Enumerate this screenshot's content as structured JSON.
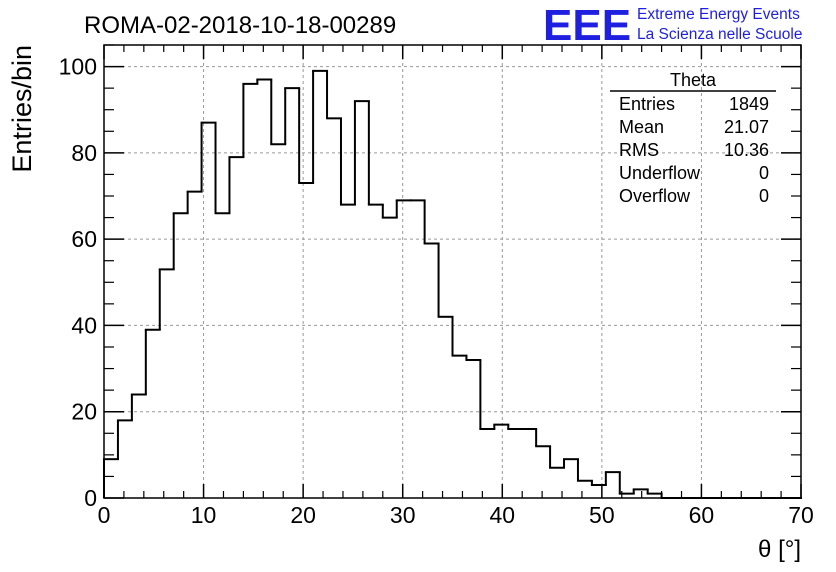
{
  "chart_data": {
    "type": "histogram",
    "title": "ROMA-02-2018-10-18-00289",
    "xlabel": "θ [°]",
    "ylabel": "Entries/bin",
    "xlim": [
      0,
      70
    ],
    "ylim": [
      0,
      105
    ],
    "grid": true,
    "bin_width": 1.4,
    "x_ticks": [
      "0",
      "10",
      "20",
      "30",
      "40",
      "50",
      "60",
      "70"
    ],
    "y_ticks": [
      "0",
      "20",
      "40",
      "60",
      "80",
      "100"
    ],
    "bin_lefts": [
      0,
      1.4,
      2.8,
      4.2,
      5.6,
      7.0,
      8.4,
      9.8,
      11.2,
      12.6,
      14.0,
      15.4,
      16.8,
      18.2,
      19.6,
      21.0,
      22.4,
      23.8,
      25.2,
      26.6,
      28.0,
      29.4,
      30.8,
      32.2,
      33.6,
      35.0,
      36.4,
      37.8,
      39.2,
      40.6,
      42.0,
      43.4,
      44.8,
      46.2,
      47.6,
      49.0,
      50.4,
      51.8,
      53.2,
      54.6,
      56.0,
      57.4,
      58.8,
      60.2,
      61.6,
      63.0,
      64.4,
      65.8,
      67.2,
      68.6
    ],
    "values": [
      9,
      18,
      24,
      39,
      53,
      66,
      71,
      87,
      66,
      79,
      96,
      97,
      82,
      95,
      73,
      99,
      88,
      68,
      92,
      68,
      65,
      69,
      69,
      59,
      42,
      33,
      32,
      16,
      17,
      16,
      16,
      12,
      7,
      9,
      4,
      3,
      6,
      1,
      2,
      1,
      0,
      0,
      0,
      0,
      0,
      0,
      0,
      0,
      0,
      0
    ],
    "stats": {
      "title": "Theta",
      "rows": [
        {
          "label": "Entries",
          "value": "1849"
        },
        {
          "label": "Mean",
          "value": "21.07"
        },
        {
          "label": "RMS",
          "value": "10.36"
        },
        {
          "label": "Underflow",
          "value": "0"
        },
        {
          "label": "Overflow",
          "value": "0"
        }
      ]
    },
    "logo": {
      "mark": "EEE",
      "line1": "Extreme Energy Events",
      "line2": "La Scienza nelle Scuole",
      "color": "#1f1fe0"
    }
  }
}
